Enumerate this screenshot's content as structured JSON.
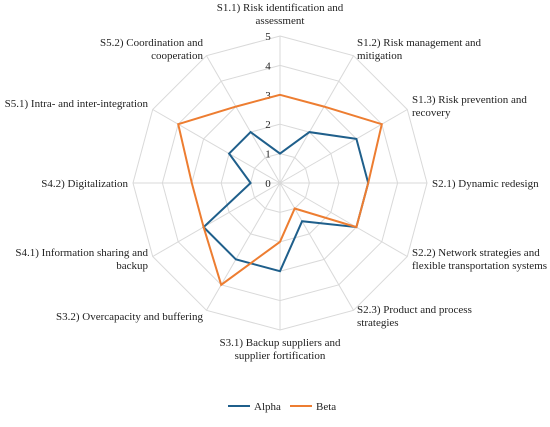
{
  "chart_data": {
    "type": "radar",
    "rlim": [
      0,
      5
    ],
    "rticks": [
      "0",
      "1",
      "2",
      "3",
      "4",
      "5"
    ],
    "grid": true,
    "legend_position": "bottom",
    "categories": [
      [
        "S1.1) Risk identification and",
        "assessment"
      ],
      [
        "S1.2) Risk management and",
        "mitigation"
      ],
      [
        "S1.3) Risk prevention and",
        "recovery"
      ],
      [
        "S2.1) Dynamic redesign"
      ],
      [
        "S2.2) Network strategies and",
        "flexible transportation systems"
      ],
      [
        "S2.3) Product and process",
        "strategies"
      ],
      [
        "S3.1) Backup suppliers and",
        "supplier fortification"
      ],
      [
        "S3.2) Overcapacity and buffering"
      ],
      [
        "S4.1) Information sharing and",
        "backup"
      ],
      [
        "S4.2) Digitalization"
      ],
      [
        "S5.1) Intra- and inter-integration"
      ],
      [
        "S5.2) Coordination and",
        "cooperation"
      ]
    ],
    "series": [
      {
        "name": "Alpha",
        "color": "#1f5f8b",
        "values": [
          1,
          2,
          3,
          3,
          3,
          1.5,
          3,
          3,
          3,
          1,
          2,
          2
        ]
      },
      {
        "name": "Beta",
        "color": "#ed7d31",
        "values": [
          3,
          3,
          4,
          3,
          3,
          1,
          2,
          4,
          3,
          3,
          4,
          3
        ]
      }
    ]
  }
}
